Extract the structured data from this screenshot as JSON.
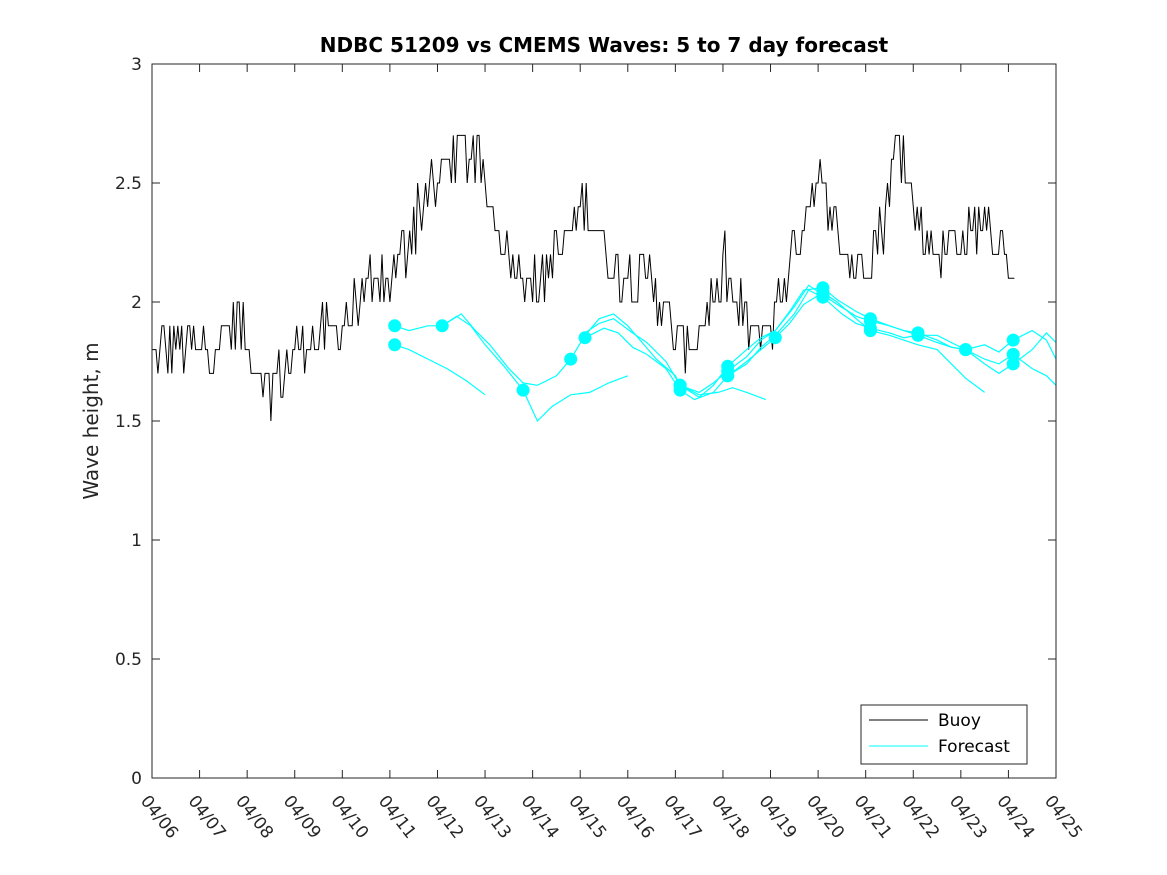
{
  "chart_data": {
    "type": "line",
    "title": "NDBC 51209 vs CMEMS Waves: 5 to 7 day forecast",
    "xlabel": "",
    "ylabel": "Wave height, m",
    "xlim": [
      0,
      19
    ],
    "ylim": [
      0,
      3
    ],
    "x_tick_labels": [
      "04/06",
      "04/07",
      "04/08",
      "04/09",
      "04/10",
      "04/11",
      "04/12",
      "04/13",
      "04/14",
      "04/15",
      "04/16",
      "04/17",
      "04/18",
      "04/19",
      "04/20",
      "04/21",
      "04/22",
      "04/23",
      "04/24",
      "04/25"
    ],
    "y_ticks": [
      0,
      0.5,
      1,
      1.5,
      2,
      2.5,
      3
    ],
    "y_tick_labels": [
      "0",
      "0.5",
      "1",
      "1.5",
      "2",
      "2.5",
      "3"
    ],
    "grid": false,
    "legend_position": "bottom-right",
    "colors": {
      "buoy": "#000000",
      "forecast": "#00ffff"
    },
    "buoy_anchors": [
      [
        0.0,
        1.8
      ],
      [
        0.3,
        1.8
      ],
      [
        0.6,
        1.8
      ],
      [
        1.0,
        1.8
      ],
      [
        1.5,
        1.85
      ],
      [
        1.8,
        1.95
      ],
      [
        2.0,
        1.8
      ],
      [
        2.3,
        1.7
      ],
      [
        2.6,
        1.65
      ],
      [
        2.9,
        1.75
      ],
      [
        3.2,
        1.85
      ],
      [
        3.6,
        1.85
      ],
      [
        4.0,
        1.9
      ],
      [
        4.3,
        1.98
      ],
      [
        4.6,
        2.05
      ],
      [
        5.0,
        2.1
      ],
      [
        5.3,
        2.2
      ],
      [
        5.6,
        2.4
      ],
      [
        6.0,
        2.5
      ],
      [
        6.2,
        2.6
      ],
      [
        6.5,
        2.65
      ],
      [
        6.8,
        2.6
      ],
      [
        7.0,
        2.45
      ],
      [
        7.3,
        2.3
      ],
      [
        7.7,
        2.15
      ],
      [
        8.1,
        2.05
      ],
      [
        8.5,
        2.2
      ],
      [
        8.8,
        2.3
      ],
      [
        9.1,
        2.4
      ],
      [
        9.5,
        2.25
      ],
      [
        9.8,
        2.1
      ],
      [
        10.2,
        2.05
      ],
      [
        10.5,
        2.1
      ],
      [
        10.8,
        1.95
      ],
      [
        11.1,
        1.8
      ],
      [
        11.4,
        1.85
      ],
      [
        11.8,
        2.05
      ],
      [
        12.1,
        2.05
      ],
      [
        12.4,
        1.95
      ],
      [
        12.7,
        1.85
      ],
      [
        13.0,
        1.9
      ],
      [
        13.3,
        2.1
      ],
      [
        13.6,
        2.3
      ],
      [
        13.9,
        2.5
      ],
      [
        14.2,
        2.45
      ],
      [
        14.5,
        2.25
      ],
      [
        14.8,
        2.15
      ],
      [
        15.1,
        2.2
      ],
      [
        15.4,
        2.35
      ],
      [
        15.6,
        2.6
      ],
      [
        15.8,
        2.7
      ],
      [
        16.0,
        2.4
      ],
      [
        16.3,
        2.25
      ],
      [
        16.6,
        2.2
      ],
      [
        16.9,
        2.25
      ],
      [
        17.2,
        2.3
      ],
      [
        17.5,
        2.35
      ],
      [
        17.8,
        2.25
      ],
      [
        18.0,
        2.2
      ],
      [
        18.15,
        2.05
      ]
    ],
    "buoy_range": [
      0.0,
      18.15
    ],
    "buoy_noise_amplitude": 0.11,
    "forecast_series": [
      {
        "name": "Forecast",
        "values": [
          [
            5.1,
            1.82
          ],
          [
            5.4,
            1.8
          ],
          [
            5.8,
            1.76
          ],
          [
            6.2,
            1.72
          ],
          [
            6.6,
            1.67
          ],
          [
            7.0,
            1.61
          ]
        ],
        "marker_at": 0
      },
      {
        "name": "Forecast",
        "values": [
          [
            5.1,
            1.9
          ],
          [
            5.4,
            1.88
          ],
          [
            5.8,
            1.9
          ],
          [
            6.1,
            1.9
          ],
          [
            6.4,
            1.94
          ],
          [
            6.7,
            1.9
          ],
          [
            7.0,
            1.82
          ],
          [
            7.4,
            1.73
          ],
          [
            7.8,
            1.63
          ],
          [
            8.1,
            1.5
          ],
          [
            8.4,
            1.56
          ],
          [
            8.8,
            1.61
          ],
          [
            9.2,
            1.62
          ],
          [
            9.6,
            1.66
          ],
          [
            10.0,
            1.69
          ]
        ],
        "marker_at": [
          0,
          3,
          8
        ]
      },
      {
        "name": "Forecast",
        "values": [
          [
            6.1,
            1.9
          ],
          [
            6.5,
            1.95
          ],
          [
            6.8,
            1.88
          ],
          [
            7.1,
            1.82
          ],
          [
            7.5,
            1.72
          ],
          [
            7.8,
            1.66
          ],
          [
            8.1,
            1.65
          ],
          [
            8.5,
            1.69
          ],
          [
            8.8,
            1.76
          ],
          [
            9.1,
            1.86
          ],
          [
            9.4,
            1.93
          ],
          [
            9.7,
            1.95
          ],
          [
            10.0,
            1.9
          ],
          [
            10.3,
            1.83
          ],
          [
            10.6,
            1.76
          ],
          [
            11.0,
            1.69
          ],
          [
            11.1,
            1.65
          ],
          [
            11.5,
            1.61
          ],
          [
            11.9,
            1.62
          ],
          [
            12.2,
            1.64
          ],
          [
            12.5,
            1.62
          ],
          [
            12.9,
            1.59
          ]
        ],
        "marker_at": [
          8,
          16
        ]
      },
      {
        "name": "Forecast",
        "values": [
          [
            9.1,
            1.85
          ],
          [
            9.5,
            1.89
          ],
          [
            9.8,
            1.87
          ],
          [
            10.1,
            1.81
          ],
          [
            10.4,
            1.78
          ],
          [
            10.8,
            1.72
          ],
          [
            11.1,
            1.63
          ],
          [
            11.4,
            1.59
          ],
          [
            11.8,
            1.62
          ],
          [
            12.1,
            1.69
          ],
          [
            12.5,
            1.75
          ],
          [
            12.8,
            1.8
          ],
          [
            13.1,
            1.85
          ],
          [
            13.4,
            1.91
          ],
          [
            13.7,
            1.99
          ],
          [
            14.1,
            2.04
          ],
          [
            14.4,
            2.0
          ],
          [
            14.8,
            1.93
          ],
          [
            15.1,
            1.88
          ],
          [
            15.5,
            1.86
          ],
          [
            15.8,
            1.84
          ],
          [
            16.1,
            1.82
          ],
          [
            16.5,
            1.8
          ],
          [
            16.8,
            1.74
          ],
          [
            17.1,
            1.68
          ],
          [
            17.5,
            1.62
          ]
        ],
        "marker_at": [
          0,
          6,
          9,
          12,
          15,
          18
        ]
      },
      {
        "name": "Forecast",
        "values": [
          [
            9.1,
            1.87
          ],
          [
            9.4,
            1.91
          ],
          [
            9.7,
            1.93
          ],
          [
            10.1,
            1.87
          ],
          [
            10.4,
            1.83
          ],
          [
            10.8,
            1.75
          ],
          [
            11.1,
            1.65
          ],
          [
            11.5,
            1.6
          ],
          [
            11.8,
            1.65
          ],
          [
            12.1,
            1.73
          ],
          [
            12.5,
            1.8
          ],
          [
            12.8,
            1.85
          ],
          [
            13.1,
            1.88
          ],
          [
            13.4,
            1.96
          ],
          [
            13.7,
            2.05
          ],
          [
            14.1,
            2.06
          ],
          [
            14.4,
            2.01
          ],
          [
            14.8,
            1.96
          ],
          [
            15.1,
            1.93
          ],
          [
            15.5,
            1.9
          ],
          [
            15.8,
            1.88
          ],
          [
            16.1,
            1.86
          ],
          [
            16.5,
            1.86
          ],
          [
            16.8,
            1.83
          ],
          [
            17.1,
            1.8
          ],
          [
            17.5,
            1.76
          ],
          [
            17.8,
            1.74
          ],
          [
            18.1,
            1.78
          ],
          [
            18.5,
            1.72
          ],
          [
            18.8,
            1.69
          ],
          [
            19.0,
            1.65
          ]
        ],
        "marker_at": [
          6,
          9,
          15,
          18,
          21,
          27
        ]
      },
      {
        "name": "Forecast",
        "values": [
          [
            11.1,
            1.65
          ],
          [
            11.5,
            1.62
          ],
          [
            11.8,
            1.66
          ],
          [
            12.1,
            1.71
          ],
          [
            12.5,
            1.77
          ],
          [
            12.8,
            1.84
          ],
          [
            13.1,
            1.88
          ],
          [
            13.5,
            1.98
          ],
          [
            13.8,
            2.07
          ],
          [
            14.1,
            2.03
          ],
          [
            14.4,
            1.99
          ],
          [
            14.8,
            1.94
          ],
          [
            15.1,
            1.92
          ],
          [
            15.5,
            1.9
          ],
          [
            15.8,
            1.88
          ],
          [
            16.1,
            1.87
          ],
          [
            16.5,
            1.84
          ],
          [
            16.8,
            1.81
          ],
          [
            17.1,
            1.8
          ],
          [
            17.5,
            1.82
          ],
          [
            17.8,
            1.79
          ],
          [
            18.1,
            1.84
          ],
          [
            18.5,
            1.88
          ],
          [
            18.8,
            1.84
          ],
          [
            19.0,
            1.76
          ]
        ],
        "marker_at": [
          0,
          3,
          9,
          12,
          15,
          18,
          21
        ]
      },
      {
        "name": "Forecast",
        "values": [
          [
            12.1,
            1.69
          ],
          [
            12.5,
            1.74
          ],
          [
            12.8,
            1.81
          ],
          [
            13.1,
            1.86
          ],
          [
            13.5,
            1.95
          ],
          [
            13.8,
            2.05
          ],
          [
            14.1,
            2.02
          ],
          [
            14.5,
            1.95
          ],
          [
            14.8,
            1.91
          ],
          [
            15.1,
            1.89
          ],
          [
            15.5,
            1.87
          ],
          [
            15.8,
            1.85
          ],
          [
            16.1,
            1.86
          ],
          [
            16.5,
            1.83
          ],
          [
            16.8,
            1.81
          ],
          [
            17.1,
            1.8
          ],
          [
            17.5,
            1.74
          ],
          [
            17.8,
            1.7
          ],
          [
            18.1,
            1.74
          ],
          [
            18.5,
            1.8
          ],
          [
            18.8,
            1.87
          ],
          [
            19.0,
            1.83
          ]
        ],
        "marker_at": [
          0,
          6,
          9,
          12,
          15,
          18
        ]
      }
    ],
    "legend": [
      {
        "label": "Buoy",
        "color": "#000000"
      },
      {
        "label": "Forecast",
        "color": "#00ffff"
      }
    ]
  }
}
